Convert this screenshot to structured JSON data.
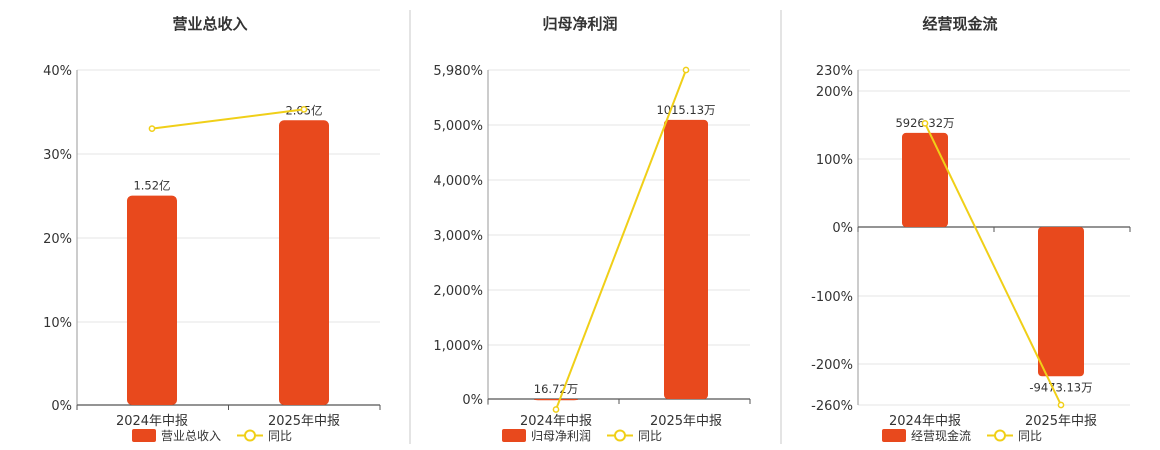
{
  "colors": {
    "bar": "#E8491D",
    "line": "#F0CF18",
    "grid": "#E6E6E6",
    "axis": "#555555",
    "divider": "#C8C8C8"
  },
  "legend": {
    "line_label": "同比"
  },
  "chart_data": [
    {
      "type": "bar",
      "title": "营业总收入",
      "categories": [
        "2024年中报",
        "2025年中报"
      ],
      "yticks": [
        "40%",
        "30%",
        "20%",
        "10%",
        "0%"
      ],
      "ylim": [
        0,
        40
      ],
      "series": [
        {
          "name": "营业总收入",
          "type": "bar",
          "values": [
            25,
            34
          ],
          "labels": [
            "1.52亿",
            "2.05亿"
          ]
        },
        {
          "name": "同比",
          "type": "line",
          "values": [
            33,
            35.3
          ]
        }
      ]
    },
    {
      "type": "bar",
      "title": "归母净利润",
      "categories": [
        "2024年中报",
        "2025年中报"
      ],
      "yticks": [
        "5,980%",
        "5,000%",
        "4,000%",
        "3,000%",
        "2,000%",
        "1,000%",
        "0%"
      ],
      "ylim": [
        0,
        5980
      ],
      "series": [
        {
          "name": "归母净利润",
          "type": "bar",
          "values": [
            85,
            5090
          ],
          "labels": [
            "16.72万",
            "1015.13万"
          ]
        },
        {
          "name": "同比",
          "type": "line",
          "values": [
            -80,
            5980
          ]
        }
      ]
    },
    {
      "type": "bar",
      "title": "经营现金流",
      "categories": [
        "2024年中报",
        "2025年中报"
      ],
      "yticks": [
        "230%",
        "200%",
        "100%",
        "0%",
        "-100%",
        "-200%",
        "-260%"
      ],
      "ylim": [
        -260,
        230
      ],
      "series": [
        {
          "name": "经营现金流",
          "type": "bar",
          "values": [
            138,
            -218
          ],
          "labels": [
            "5926.32万",
            "-9473.13万"
          ]
        },
        {
          "name": "同比",
          "type": "line",
          "values": [
            152,
            -260
          ]
        }
      ]
    }
  ]
}
